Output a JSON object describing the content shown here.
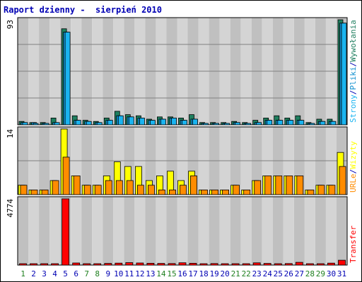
{
  "title": "Raport dzienny -  sierpień 2010",
  "colors": {
    "background": "#ffffff",
    "plot_band_dark": "#c0c0c0",
    "plot_band_light": "#d4d4d4",
    "gridline": "#808080",
    "title": "#0000b4",
    "visits": "#1f7f5f",
    "pages": "#1ab4f0",
    "hits": "#0f8fcf",
    "files": "#0f8fcf",
    "sites": "#ff8c00",
    "visits_yellow": "#ffff00",
    "kbytes": "#ff0000",
    "weekend_label": "#208020",
    "day_label": "#0000b4"
  },
  "chart_data": [
    {
      "type": "bar",
      "categories": [
        "1",
        "2",
        "3",
        "4",
        "5",
        "6",
        "7",
        "8",
        "9",
        "10",
        "11",
        "12",
        "13",
        "14",
        "15",
        "16",
        "17",
        "18",
        "19",
        "20",
        "21",
        "22",
        "23",
        "24",
        "25",
        "26",
        "27",
        "28",
        "29",
        "30",
        "31"
      ],
      "weekend_days": [
        "1",
        "7",
        "8",
        "14",
        "15",
        "21",
        "22",
        "28",
        "29"
      ],
      "ymax_label": "93",
      "ylim": [
        0,
        93
      ],
      "right_labels": [
        {
          "text": "Strony",
          "color": "#1ab4f0"
        },
        {
          "text": "/",
          "color": "#0000b4"
        },
        {
          "text": "Pliki",
          "color": "#0f8fcf"
        },
        {
          "text": "/",
          "color": "#0000b4"
        },
        {
          "text": "Wywołania",
          "color": "#1f7f5f"
        }
      ],
      "series": [
        {
          "key": "hits",
          "color": "#1f7f5f",
          "values": [
            3,
            2,
            2,
            6,
            85,
            8,
            4,
            3,
            6,
            12,
            9,
            8,
            5,
            7,
            7,
            6,
            9,
            2,
            2,
            2,
            3,
            2,
            4,
            6,
            8,
            6,
            8,
            2,
            5,
            5,
            93
          ]
        },
        {
          "key": "files",
          "color": "#0f8fcf",
          "values": [
            2,
            2,
            1,
            2,
            82,
            4,
            3,
            2,
            4,
            8,
            7,
            6,
            4,
            5,
            6,
            4,
            5,
            1,
            1,
            1,
            2,
            1,
            2,
            4,
            4,
            4,
            4,
            1,
            3,
            3,
            90
          ]
        },
        {
          "key": "pages",
          "color": "#1ab4f0",
          "values": [
            2,
            1,
            1,
            2,
            82,
            4,
            3,
            2,
            4,
            8,
            7,
            6,
            4,
            5,
            6,
            4,
            5,
            1,
            1,
            1,
            2,
            1,
            2,
            4,
            4,
            4,
            4,
            1,
            3,
            3,
            90
          ]
        }
      ]
    },
    {
      "type": "bar",
      "ymax_label": "14",
      "ylim": [
        0,
        14
      ],
      "right_labels": [
        {
          "text": "URLe",
          "color": "#ff8c00"
        },
        {
          "text": "/",
          "color": "#0000b4"
        },
        {
          "text": "Wizyty",
          "color": "#ffff00"
        }
      ],
      "series": [
        {
          "key": "visits",
          "color": "#ffff00",
          "values": [
            2,
            1,
            1,
            3,
            14,
            4,
            2,
            2,
            4,
            7,
            6,
            6,
            3,
            4,
            5,
            3,
            5,
            1,
            1,
            1,
            2,
            1,
            3,
            4,
            4,
            4,
            4,
            1,
            2,
            2,
            9
          ]
        },
        {
          "key": "sites",
          "color": "#ff8c00",
          "values": [
            2,
            1,
            1,
            3,
            8,
            4,
            2,
            2,
            3,
            3,
            3,
            2,
            2,
            1,
            1,
            2,
            4,
            1,
            1,
            1,
            2,
            1,
            3,
            4,
            4,
            4,
            4,
            1,
            2,
            2,
            6
          ]
        }
      ]
    },
    {
      "type": "bar",
      "ymax_label": "4774",
      "ylim": [
        0,
        4774
      ],
      "right_labels": [
        {
          "text": "Transfer",
          "color": "#ff0000"
        }
      ],
      "series": [
        {
          "key": "kbytes",
          "color": "#ff0000",
          "values": [
            80,
            60,
            50,
            70,
            4774,
            150,
            100,
            90,
            120,
            140,
            180,
            150,
            130,
            120,
            110,
            170,
            130,
            90,
            110,
            100,
            80,
            70,
            160,
            120,
            100,
            110,
            200,
            100,
            100,
            140,
            350
          ]
        }
      ]
    }
  ]
}
